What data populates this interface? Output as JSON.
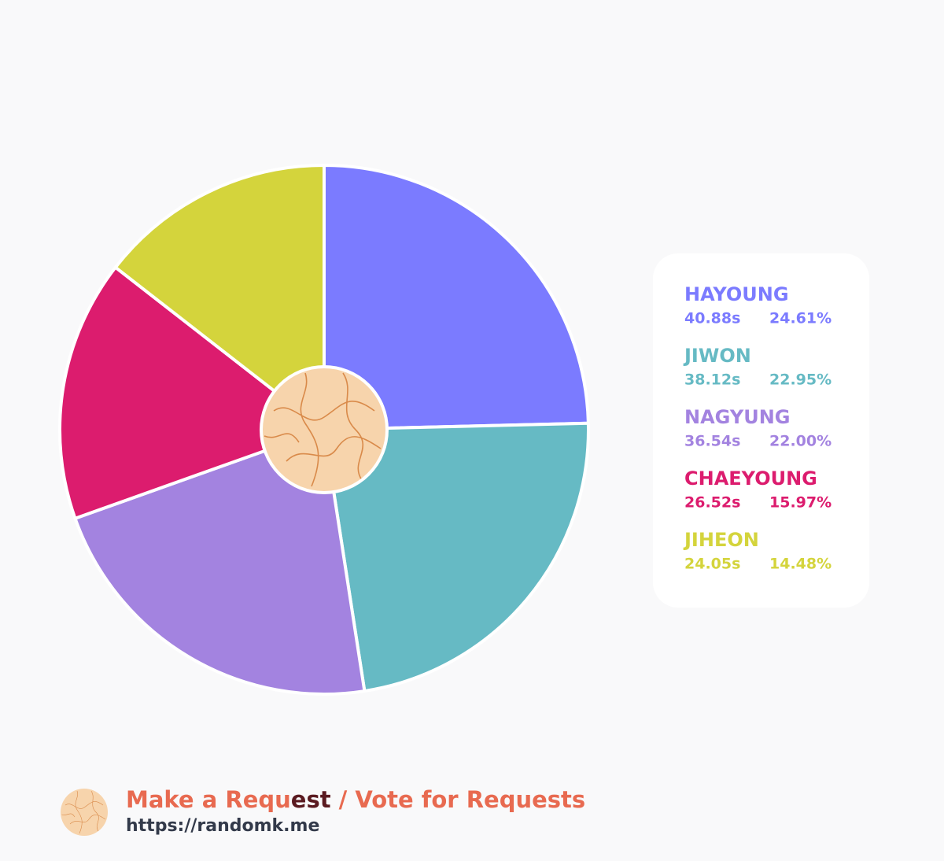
{
  "chart_data": {
    "type": "pie",
    "categories": [
      "HAYOUNG",
      "JIWON",
      "NAGYUNG",
      "CHAEYOUNG",
      "JIHEON"
    ],
    "values": [
      24.61,
      22.95,
      22.0,
      15.97,
      14.48
    ],
    "value_labels": [
      "24.61%",
      "22.95%",
      "22.00%",
      "15.97%",
      "14.48%"
    ],
    "durations": [
      40.88,
      38.12,
      36.54,
      26.52,
      24.05
    ],
    "duration_labels": [
      "40.88s",
      "38.12s",
      "36.54s",
      "26.52s",
      "24.05s"
    ],
    "colors": [
      "#7b7bff",
      "#66bac4",
      "#a383e0",
      "#dc1c6e",
      "#d4d43c"
    ]
  },
  "footer": {
    "request_parts": [
      "Make a Requ",
      "est",
      " / Vote for Requests"
    ],
    "url": "https://randomk.me"
  }
}
